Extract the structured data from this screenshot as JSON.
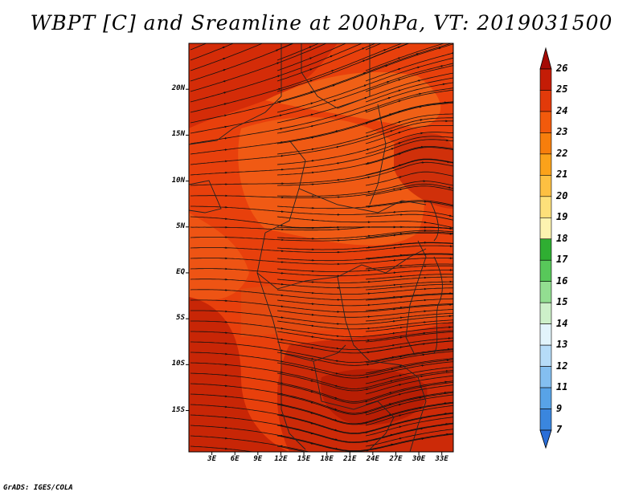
{
  "title": "WBPT [C] and Sreamline at 200hPa, VT: 2019031500",
  "credit": "GrADS: IGES/COLA",
  "map": {
    "lon_ticks": [
      "3E",
      "6E",
      "9E",
      "12E",
      "15E",
      "18E",
      "21E",
      "24E",
      "27E",
      "30E",
      "33E"
    ],
    "lat_ticks": [
      "20N",
      "15N",
      "10N",
      "5N",
      "EQ",
      "5S",
      "10S",
      "15S"
    ],
    "lon_range_deg": [
      0,
      34.5
    ],
    "lat_range_deg": [
      -19.5,
      25
    ],
    "field": "wet-bulb potential temperature, values 23–25 C",
    "background_color": "#e8400c"
  },
  "colorbar": {
    "labels": [
      "26",
      "25",
      "24",
      "23",
      "22",
      "21",
      "20",
      "19",
      "18",
      "17",
      "16",
      "15",
      "14",
      "13",
      "12",
      "11",
      "9",
      "7"
    ],
    "colors": [
      "#a50a04",
      "#c41c06",
      "#e23a0a",
      "#f25a0c",
      "#f77e0c",
      "#fba21a",
      "#fdc042",
      "#fde07a",
      "#fdf3b0",
      "#2fae32",
      "#58c85a",
      "#93de91",
      "#cdf0c9",
      "#e2f4fb",
      "#b6dcf8",
      "#84bff0",
      "#58a3e7",
      "#3a86de",
      "#2a6ed8"
    ]
  }
}
